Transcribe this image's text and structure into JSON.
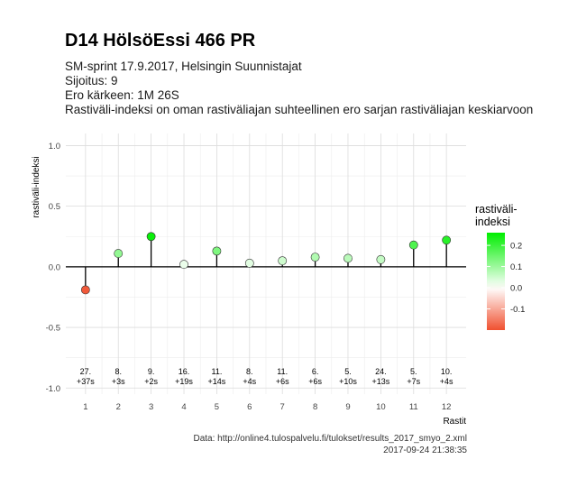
{
  "header": {
    "title": "D14 HölsöEssi 466 PR",
    "subtitle_lines": [
      "SM-sprint 17.9.2017, Helsingin Suunnistajat",
      "Sijoitus: 9",
      "Ero kärkeen: 1M 26S",
      "Rastiväli-indeksi on oman rastiväliajan suhteellinen ero sarjan rastiväliajan keskiarvoon"
    ]
  },
  "footer": {
    "source": "Data: http://online4.tulospalvelu.fi/tulokset/results_2017_smyo_2.xml",
    "timestamp": "2017-09-24 21:38:35"
  },
  "chart_data": {
    "type": "lollipop",
    "xlabel": "Rastit",
    "ylabel": "rastiväli-indeksi",
    "ylim": [
      -1.05,
      1.1
    ],
    "yticks": [
      -1.0,
      -0.5,
      0.0,
      0.5,
      1.0
    ],
    "ytick_labels": [
      "-1.0",
      "-0.5",
      "0.0",
      "0.5",
      "1.0"
    ],
    "x": [
      1,
      2,
      3,
      4,
      5,
      6,
      7,
      8,
      9,
      10,
      11,
      12
    ],
    "values": [
      -0.19,
      0.11,
      0.25,
      0.02,
      0.13,
      0.03,
      0.05,
      0.08,
      0.07,
      0.06,
      0.18,
      0.22
    ],
    "annotations": [
      [
        "27.",
        "+37s"
      ],
      [
        "8.",
        "+3s"
      ],
      [
        "9.",
        "+2s"
      ],
      [
        "16.",
        "+19s"
      ],
      [
        "11.",
        "+14s"
      ],
      [
        "8.",
        "+4s"
      ],
      [
        "11.",
        "+6s"
      ],
      [
        "6.",
        "+6s"
      ],
      [
        "5.",
        "+10s"
      ],
      [
        "24.",
        "+13s"
      ],
      [
        "5.",
        "+7s"
      ],
      [
        "10.",
        "+4s"
      ]
    ],
    "legend": {
      "title": [
        "rastiväli-",
        "indeksi"
      ],
      "position": "right",
      "ticks": [
        0.2,
        0.1,
        0.0,
        -0.1
      ],
      "tick_labels": [
        "0.2",
        "0.1",
        "0.0",
        "-0.1"
      ],
      "range": [
        -0.2,
        0.26
      ],
      "colors": {
        "low": "#f05030",
        "mid": "#ffffff",
        "high": "#00ee00"
      }
    },
    "grid": true
  }
}
